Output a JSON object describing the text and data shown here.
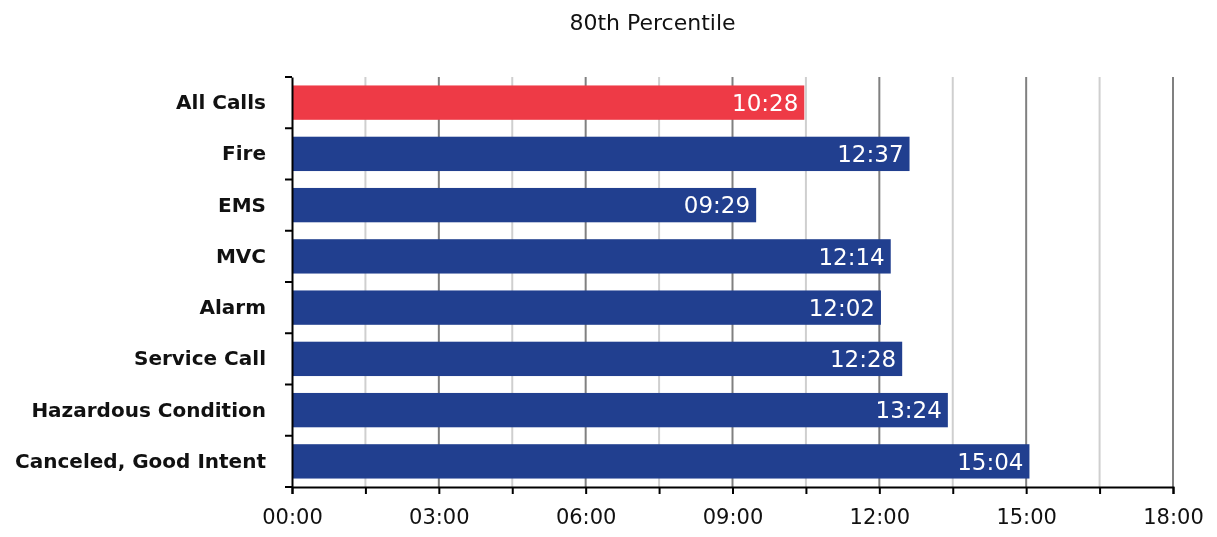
{
  "chart_data": {
    "type": "bar",
    "orientation": "horizontal",
    "title": "80th Percentile",
    "categories": [
      "All Calls",
      "Fire",
      "EMS",
      "MVC",
      "Alarm",
      "Service Call",
      "Hazardous Condition",
      "Canceled, Good Intent"
    ],
    "values": [
      10.467,
      12.617,
      9.483,
      12.233,
      12.033,
      12.467,
      13.4,
      15.067
    ],
    "value_labels": [
      "10:28",
      "12:37",
      "09:29",
      "12:14",
      "12:02",
      "12:28",
      "13:24",
      "15:04"
    ],
    "colors": [
      "#ee3a46",
      "#213f8f",
      "#213f8f",
      "#213f8f",
      "#213f8f",
      "#213f8f",
      "#213f8f",
      "#213f8f"
    ],
    "xlim": [
      0,
      18
    ],
    "xticks": [
      {
        "value": 0,
        "label": "00:00"
      },
      {
        "value": 1.5,
        "label": null
      },
      {
        "value": 3,
        "label": "03:00"
      },
      {
        "value": 4.5,
        "label": null
      },
      {
        "value": 6,
        "label": "06:00"
      },
      {
        "value": 7.5,
        "label": null
      },
      {
        "value": 9,
        "label": "09:00"
      },
      {
        "value": 10.5,
        "label": null
      },
      {
        "value": 12,
        "label": "12:00"
      },
      {
        "value": 13.5,
        "label": null
      },
      {
        "value": 15,
        "label": "15:00"
      },
      {
        "value": 16.5,
        "label": null
      },
      {
        "value": 18,
        "label": "18:00"
      }
    ],
    "grid": "x"
  }
}
